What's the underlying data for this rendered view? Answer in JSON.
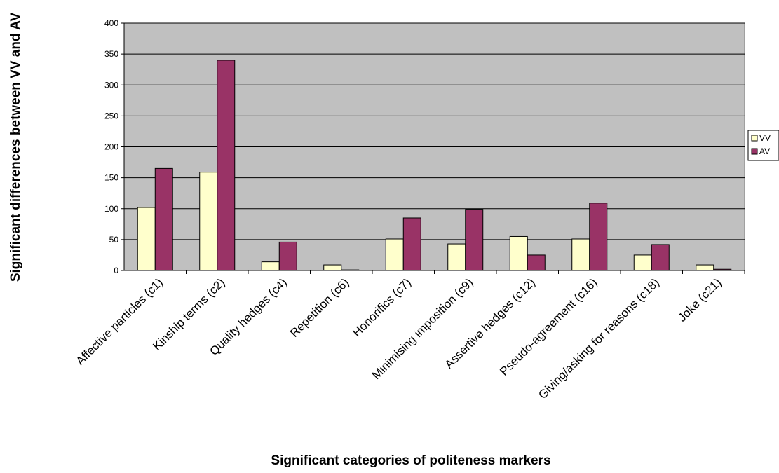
{
  "chart_data": {
    "type": "bar",
    "title": "",
    "xlabel": "Significant categories of politeness markers",
    "ylabel": "Significant differences between VV and AV",
    "ylim": [
      0,
      400
    ],
    "yticks": [
      "0",
      "50",
      "100",
      "150",
      "200",
      "250",
      "300",
      "350",
      "400"
    ],
    "grid": true,
    "legend_position": "right",
    "categories": [
      "Affective particles (c1)",
      "Kinship terms (c2)",
      "Quality hedges (c4)",
      "Repetition (c6)",
      "Honorifics (c7)",
      "Minimising imposition (c9)",
      "Assertive hedges (c12)",
      "Pseudo-agreement (c16)",
      "Giving/asking for reasons (c18)",
      "Joke (c21)"
    ],
    "series": [
      {
        "name": "VV",
        "color": "#ffffcc",
        "values": [
          102,
          159,
          14,
          9,
          51,
          43,
          55,
          51,
          25,
          9
        ]
      },
      {
        "name": "AV",
        "color": "#993366",
        "values": [
          165,
          340,
          46,
          1,
          85,
          99,
          25,
          109,
          42,
          2
        ]
      }
    ],
    "plot_background": "#c0c0c0"
  }
}
